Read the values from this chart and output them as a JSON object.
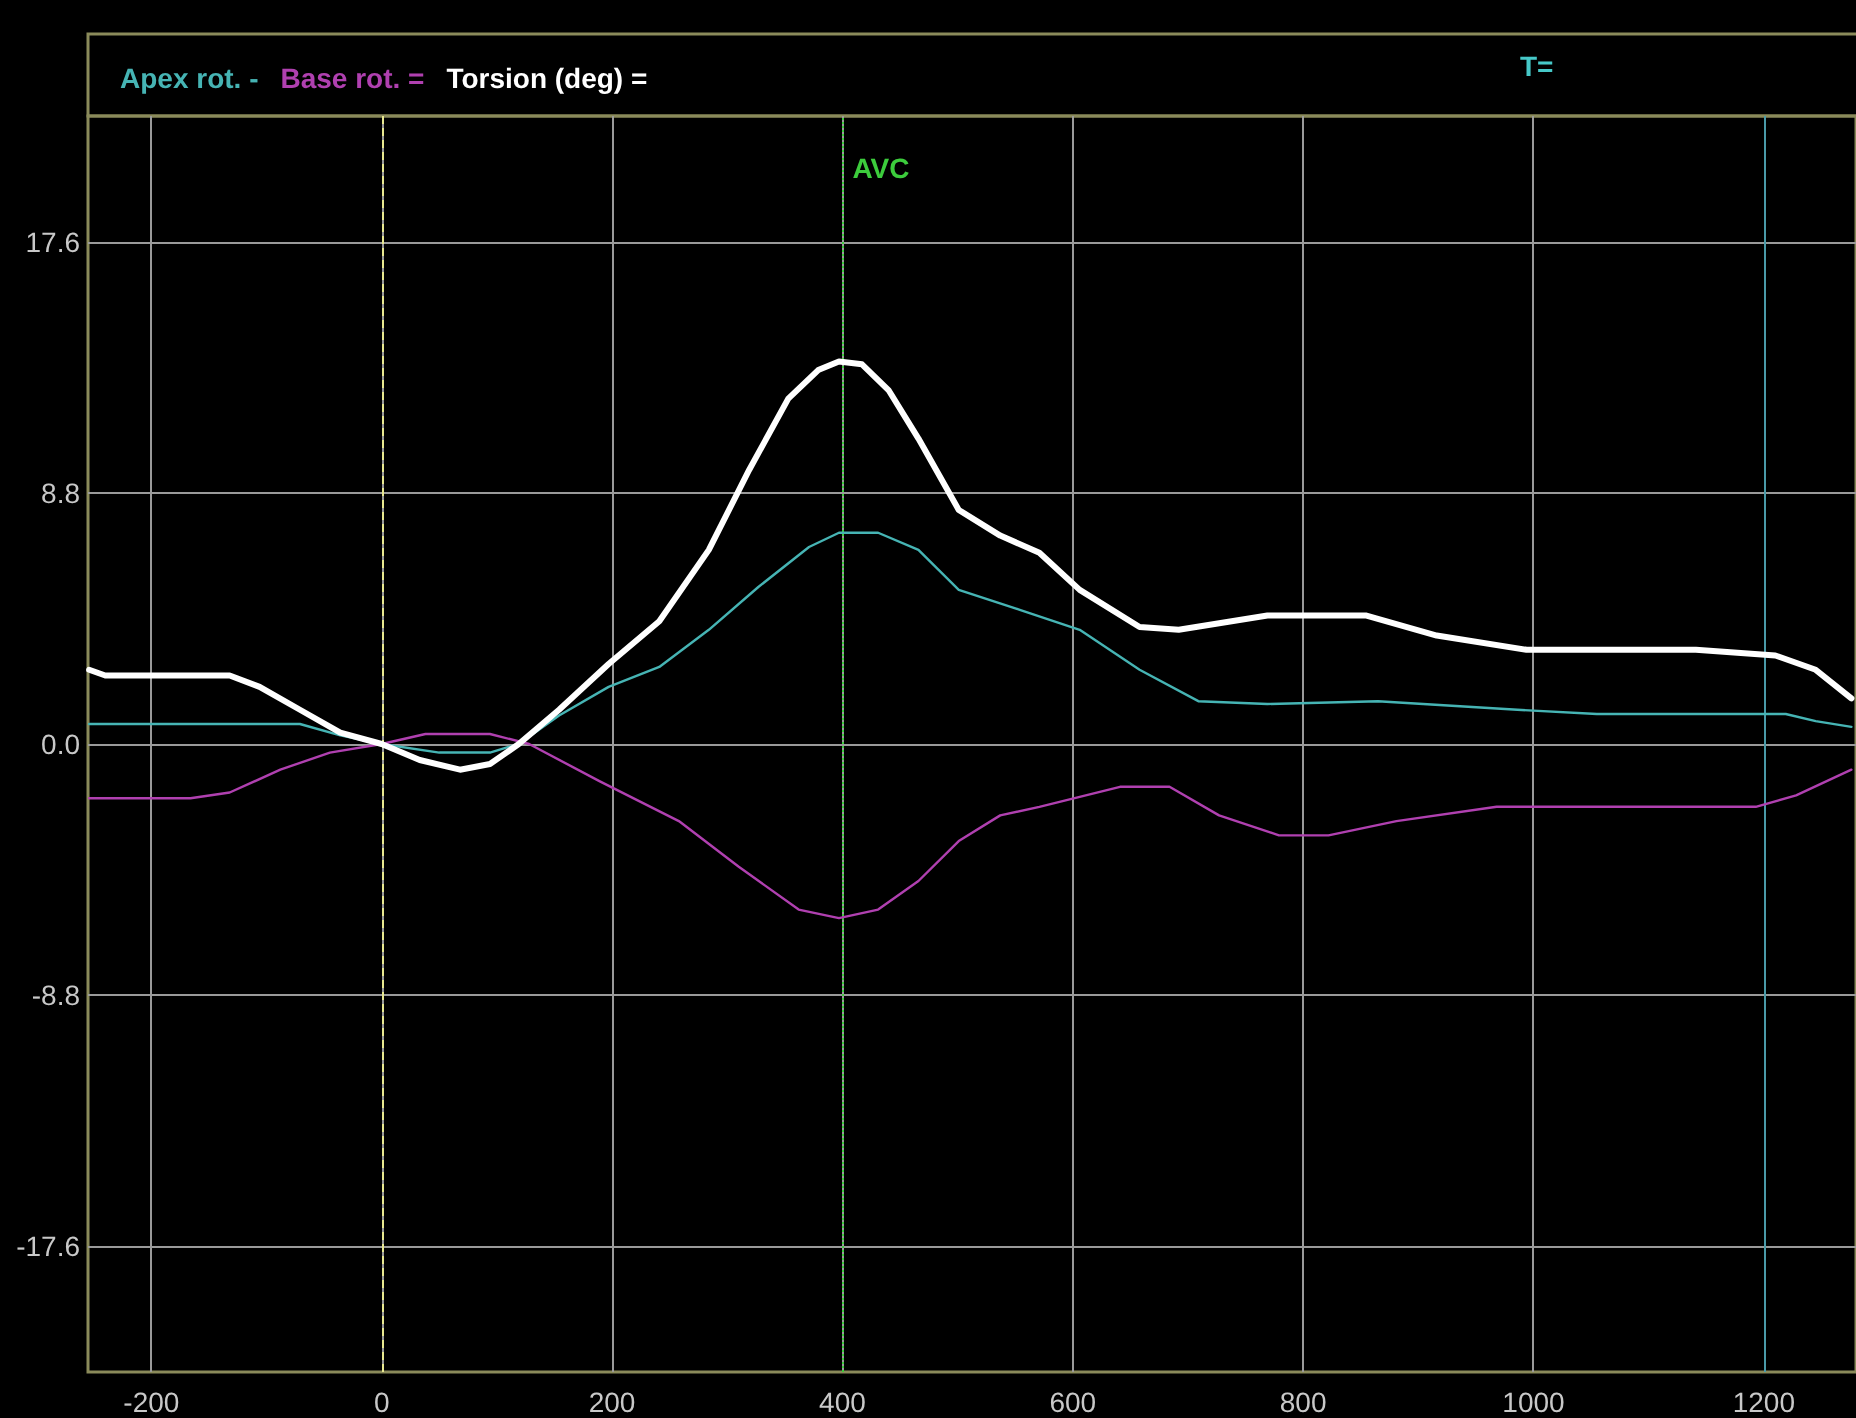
{
  "chart_data": {
    "type": "line",
    "marker": "none",
    "grid": true,
    "legend": "top left",
    "annotations": [
      "T="
    ],
    "xlim": [
      -255,
      1280
    ],
    "ylim": [
      -22,
      22
    ],
    "xticks": [
      -200,
      0,
      200,
      400,
      600,
      800,
      1000,
      1200
    ],
    "yticks": [
      17.6,
      8.8,
      {
        "value": 0,
        "label": "0.0"
      },
      -8.8,
      -17.6
    ],
    "ref_lines": [
      {
        "axis": "x",
        "value": 0,
        "label": null,
        "color": "#e8e890",
        "line_style": "dashed"
      },
      {
        "axis": "x",
        "value": 400,
        "label": "AVC",
        "color": "#3ccc3c",
        "line_style": "dotted"
      },
      {
        "axis": "x",
        "value": 1200,
        "label": null,
        "color": "#4a9aa8",
        "line_style": "solid"
      }
    ],
    "series": [
      {
        "name": "Apex rot. -",
        "color": "#46b4b4",
        "x": [
          -254,
          -71,
          -36,
          0,
          50,
          94,
          119,
          154,
          197,
          241,
          284,
          327,
          371,
          397,
          431,
          466,
          501,
          554,
          606,
          658,
          709,
          769,
          865,
          986,
          1055,
          1219,
          1245,
          1276
        ],
        "values": [
          0.7,
          0.7,
          0.3,
          0,
          -0.3,
          -0.3,
          0,
          1.0,
          2.0,
          2.7,
          4.0,
          5.5,
          6.9,
          7.4,
          7.4,
          6.8,
          5.4,
          4.7,
          4.0,
          2.6,
          1.5,
          1.4,
          1.5,
          1.2,
          1.05,
          1.05,
          0.8,
          0.6
        ]
      },
      {
        "name": "Base rot. =",
        "color": "#b040b0",
        "x": [
          -254,
          -166,
          -132,
          -88,
          -45,
          0,
          38,
          94,
          128,
          189,
          258,
          310,
          362,
          397,
          431,
          466,
          501,
          537,
          571,
          641,
          684,
          727,
          779,
          822,
          881,
          968,
          1193,
          1228,
          1276
        ],
        "values": [
          -1.9,
          -1.9,
          -1.7,
          -0.9,
          -0.3,
          0,
          0.35,
          0.35,
          0,
          -1.3,
          -2.7,
          -4.3,
          -5.8,
          -6.1,
          -5.8,
          -4.8,
          -3.4,
          -2.5,
          -2.2,
          -1.5,
          -1.5,
          -2.5,
          -3.2,
          -3.2,
          -2.7,
          -2.2,
          -2.2,
          -1.8,
          -0.9
        ]
      },
      {
        "name": "Torsion (deg) =",
        "color": "#ffffff",
        "x": [
          -254,
          -240,
          -132,
          -106,
          -71,
          -36,
          0,
          33,
          68,
          94,
          119,
          154,
          197,
          241,
          284,
          319,
          353,
          379,
          397,
          417,
          440,
          466,
          501,
          537,
          571,
          606,
          658,
          692,
          769,
          855,
          916,
          994,
          1141,
          1210,
          1245,
          1276
        ],
        "values": [
          2.6,
          2.4,
          2.4,
          2.0,
          1.2,
          0.4,
          0,
          -0.56,
          -0.9,
          -0.7,
          0,
          1.2,
          2.8,
          4.3,
          6.8,
          9.6,
          12.1,
          13.1,
          13.4,
          13.3,
          12.4,
          10.7,
          8.2,
          7.3,
          6.7,
          5.4,
          4.1,
          4.0,
          4.5,
          4.5,
          3.8,
          3.3,
          3.3,
          3.1,
          2.6,
          1.6
        ]
      }
    ]
  }
}
